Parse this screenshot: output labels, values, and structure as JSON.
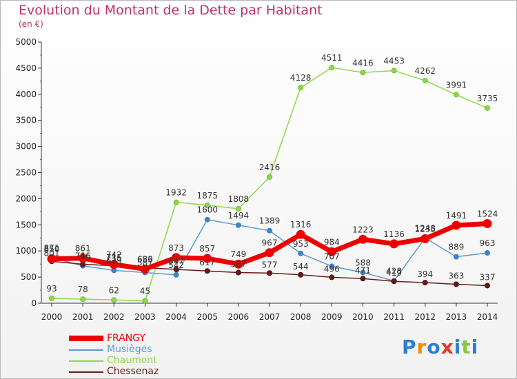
{
  "header": {
    "title": "Evolution du Montant de la Dette par Habitant",
    "subtitle": "(en €)"
  },
  "logo": {
    "text": "Proxiti"
  },
  "colors": {
    "FRANGY": "#ee0000",
    "Musièges": "#5b9ad4",
    "Chaumont": "#8fd84a",
    "Chessenaz": "#6b1a1a",
    "title": "#c0306a"
  },
  "chart_data": {
    "type": "line",
    "title": "Evolution du Montant de la Dette par Habitant",
    "subtitle": "(en €)",
    "xlabel": "",
    "ylabel": "",
    "x": [
      "2000",
      "2001",
      "2002",
      "2003",
      "2004",
      "2005",
      "2006",
      "2007",
      "2008",
      "2009",
      "2010",
      "2011",
      "2012",
      "2013",
      "2014"
    ],
    "ylim": [
      0,
      5000
    ],
    "yticks": [
      0,
      500,
      1000,
      1500,
      2000,
      2500,
      3000,
      3500,
      4000,
      4500,
      5000
    ],
    "grid": false,
    "legend": "bottom-left",
    "series": [
      {
        "name": "FRANGY",
        "values": [
          850,
          861,
          742,
          655,
          873,
          857,
          749,
          967,
          1316,
          984,
          1223,
          1136,
          1235,
          1491,
          1524
        ]
      },
      {
        "name": "Musièges",
        "values": [
          871,
          716,
          629,
          587,
          542,
          1600,
          1494,
          1389,
          953,
          707,
          588,
          428,
          1248,
          889,
          963
        ]
      },
      {
        "name": "Chaumont",
        "values": [
          93,
          78,
          62,
          45,
          1932,
          1875,
          1808,
          2416,
          4128,
          4511,
          4416,
          4453,
          4262,
          3991,
          3735
        ]
      },
      {
        "name": "Chessenaz",
        "values": [
          801,
          746,
          715,
          680,
          647,
          617,
          587,
          577,
          544,
          496,
          471,
          419,
          394,
          363,
          337
        ]
      }
    ]
  }
}
